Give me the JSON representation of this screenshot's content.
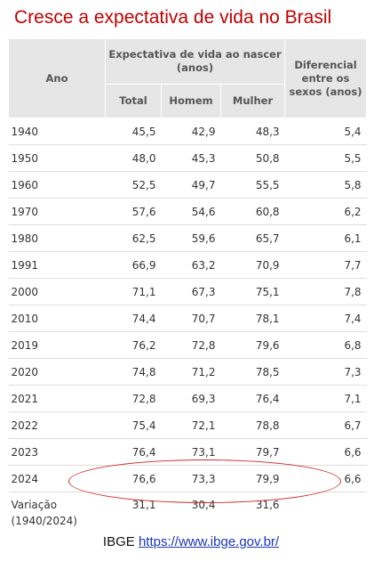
{
  "title": "Cresce a expectativa de vida no Brasil",
  "headers": {
    "ano": "Ano",
    "group": "Expectativa de vida ao nascer (anos)",
    "total": "Total",
    "homem": "Homem",
    "mulher": "Mulher",
    "diferencial": "Diferencial entre os sexos (anos)"
  },
  "rows": [
    {
      "ano": "1940",
      "total": "45,5",
      "homem": "42,9",
      "mulher": "48,3",
      "dif": "5,4"
    },
    {
      "ano": "1950",
      "total": "48,0",
      "homem": "45,3",
      "mulher": "50,8",
      "dif": "5,5"
    },
    {
      "ano": "1960",
      "total": "52,5",
      "homem": "49,7",
      "mulher": "55,5",
      "dif": "5,8"
    },
    {
      "ano": "1970",
      "total": "57,6",
      "homem": "54,6",
      "mulher": "60,8",
      "dif": "6,2"
    },
    {
      "ano": "1980",
      "total": "62,5",
      "homem": "59,6",
      "mulher": "65,7",
      "dif": "6,1"
    },
    {
      "ano": "1991",
      "total": "66,9",
      "homem": "63,2",
      "mulher": "70,9",
      "dif": "7,7"
    },
    {
      "ano": "2000",
      "total": "71,1",
      "homem": "67,3",
      "mulher": "75,1",
      "dif": "7,8"
    },
    {
      "ano": "2010",
      "total": "74,4",
      "homem": "70,7",
      "mulher": "78,1",
      "dif": "7,4"
    },
    {
      "ano": "2019",
      "total": "76,2",
      "homem": "72,8",
      "mulher": "79,6",
      "dif": "6,8"
    },
    {
      "ano": "2020",
      "total": "74,8",
      "homem": "71,2",
      "mulher": "78,5",
      "dif": "7,3"
    },
    {
      "ano": "2021",
      "total": "72,8",
      "homem": "69,3",
      "mulher": "76,4",
      "dif": "7,1"
    },
    {
      "ano": "2022",
      "total": "75,4",
      "homem": "72,1",
      "mulher": "78,8",
      "dif": "6,7"
    },
    {
      "ano": "2023",
      "total": "76,4",
      "homem": "73,1",
      "mulher": "79,7",
      "dif": "6,6"
    },
    {
      "ano": "2024",
      "total": "76,6",
      "homem": "73,3",
      "mulher": "79,9",
      "dif": "6,6"
    }
  ],
  "variation": {
    "label": "Variação (1940/2024)",
    "total": "31,1",
    "homem": "30,4",
    "mulher": "31,6",
    "dif": ""
  },
  "source": {
    "prefix": "IBGE",
    "link": "https://www.ibge.gov.br/"
  },
  "colors": {
    "title": "#c00000",
    "header_bg": "#e6e6e6",
    "highlight": "#d02a2a",
    "link": "#1a37b5"
  }
}
